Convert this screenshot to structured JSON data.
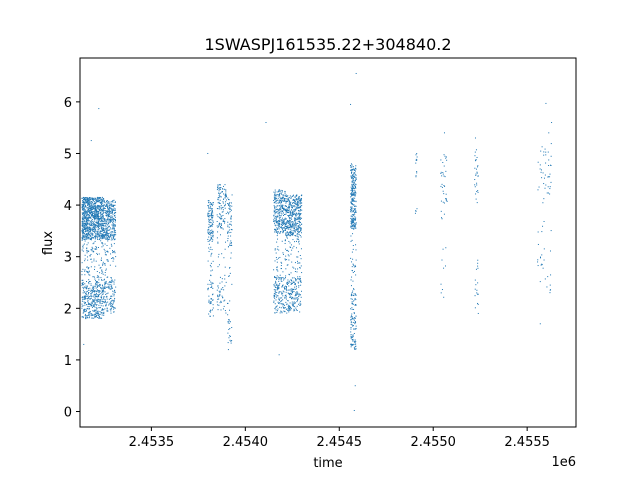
{
  "chart_data": {
    "type": "scatter",
    "title": "1SWASPJ161535.22+304840.2",
    "xlabel": "time",
    "ylabel": "flux",
    "x_offset_label": "1e6",
    "xlim": [
      2453120,
      2455760
    ],
    "ylim": [
      -0.3,
      6.85
    ],
    "x_ticks": [
      2453500,
      2454000,
      2454500,
      2455000,
      2455500
    ],
    "x_tick_labels": [
      "2.4535",
      "2.4540",
      "2.4545",
      "2.4550",
      "2.4555"
    ],
    "y_ticks": [
      0,
      1,
      2,
      3,
      4,
      5,
      6
    ],
    "y_tick_labels": [
      "0",
      "1",
      "2",
      "3",
      "4",
      "5",
      "6"
    ],
    "grid": false,
    "marker_color": "#1f77b4",
    "series": [
      {
        "clusters": [
          {
            "x_range": [
              2453130,
              2453250
            ],
            "y_range": [
              1.8,
              4.15
            ],
            "count": 1400
          },
          {
            "x_range": [
              2453250,
              2453310
            ],
            "y_range": [
              1.9,
              4.1
            ],
            "count": 450
          },
          {
            "x_range": [
              2453800,
              2453830
            ],
            "y_range": [
              1.8,
              4.1
            ],
            "count": 170
          },
          {
            "x_range": [
              2453850,
              2453900
            ],
            "y_range": [
              1.9,
              4.4
            ],
            "count": 170
          },
          {
            "x_range": [
              2453905,
              2453930
            ],
            "y_range": [
              1.3,
              4.2
            ],
            "count": 90
          },
          {
            "x_range": [
              2454150,
              2454215
            ],
            "y_range": [
              1.9,
              4.3
            ],
            "count": 450
          },
          {
            "x_range": [
              2454215,
              2454300
            ],
            "y_range": [
              1.9,
              4.2
            ],
            "count": 650
          },
          {
            "x_range": [
              2454560,
              2454590
            ],
            "y_range": [
              1.2,
              4.8
            ],
            "count": 400
          },
          {
            "x_range": [
              2454905,
              2454915
            ],
            "y_range": [
              3.7,
              5.0
            ],
            "count": 15
          },
          {
            "x_range": [
              2455040,
              2455075
            ],
            "y_range": [
              2.2,
              5.0
            ],
            "count": 45
          },
          {
            "x_range": [
              2455220,
              2455240
            ],
            "y_range": [
              2.0,
              5.1
            ],
            "count": 45
          },
          {
            "x_range": [
              2455555,
              2455630
            ],
            "y_range": [
              2.3,
              5.2
            ],
            "count": 70
          }
        ],
        "outliers": [
          {
            "x": 2453220,
            "y": 5.87
          },
          {
            "x": 2453180,
            "y": 5.25
          },
          {
            "x": 2453140,
            "y": 1.3
          },
          {
            "x": 2454110,
            "y": 5.6
          },
          {
            "x": 2454180,
            "y": 1.1
          },
          {
            "x": 2454560,
            "y": 5.95
          },
          {
            "x": 2454590,
            "y": 6.55
          },
          {
            "x": 2454580,
            "y": 0.02
          },
          {
            "x": 2454585,
            "y": 0.5
          },
          {
            "x": 2455060,
            "y": 5.4
          },
          {
            "x": 2455225,
            "y": 5.3
          },
          {
            "x": 2455600,
            "y": 5.97
          },
          {
            "x": 2455630,
            "y": 5.6
          },
          {
            "x": 2455615,
            "y": 5.4
          },
          {
            "x": 2455570,
            "y": 1.7
          },
          {
            "x": 2455240,
            "y": 1.9
          },
          {
            "x": 2453910,
            "y": 1.2
          },
          {
            "x": 2453800,
            "y": 5.0
          }
        ]
      }
    ]
  }
}
